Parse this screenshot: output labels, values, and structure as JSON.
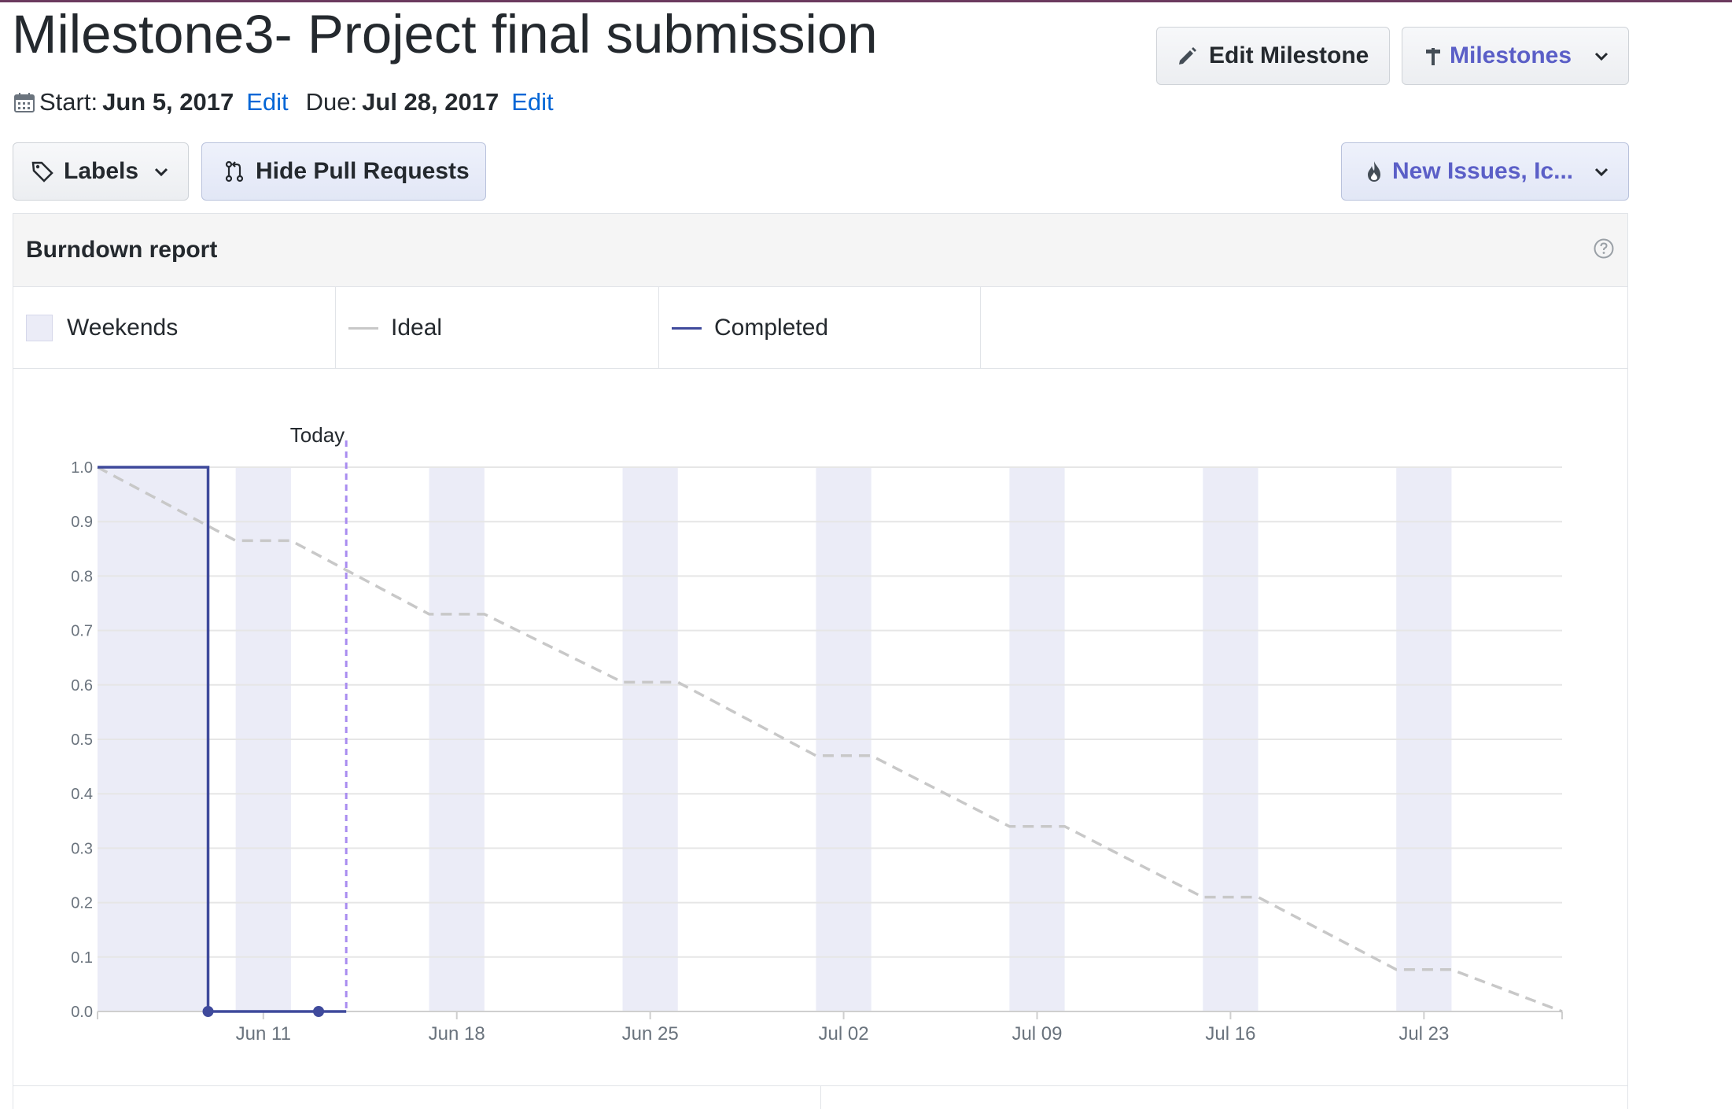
{
  "milestone": {
    "title": "Milestone3- Project final submission",
    "start_label": "Start:",
    "start_date": "Jun 5, 2017",
    "due_label": "Due:",
    "due_date": "Jul 28, 2017",
    "edit_label": "Edit"
  },
  "toolbar": {
    "edit_milestone": "Edit Milestone",
    "milestones": "Milestones",
    "labels": "Labels",
    "hide_pull_requests": "Hide Pull Requests",
    "new_issues": "New Issues, Ic..."
  },
  "report": {
    "title": "Burndown report",
    "legend": {
      "weekends": "Weekends",
      "ideal": "Ideal",
      "completed": "Completed"
    }
  },
  "colors": {
    "completed": "#3f4a9c",
    "ideal": "#c8c8c8",
    "today": "#a98cf0",
    "weekend": "#ebecf7",
    "link": "#0366d6",
    "accent": "#5b5fc7"
  },
  "chart_data": {
    "type": "line",
    "ylim": [
      0,
      1.0
    ],
    "yticks": [
      0.0,
      0.1,
      0.2,
      0.3,
      0.4,
      0.5,
      0.6,
      0.7,
      0.8,
      0.9,
      1.0
    ],
    "xlim": [
      "2017-06-05",
      "2017-07-28"
    ],
    "xticks": [
      {
        "date": "2017-06-11",
        "label": "Jun 11"
      },
      {
        "date": "2017-06-18",
        "label": "Jun 18"
      },
      {
        "date": "2017-06-25",
        "label": "Jun 25"
      },
      {
        "date": "2017-07-02",
        "label": "Jul 02"
      },
      {
        "date": "2017-07-09",
        "label": "Jul 09"
      },
      {
        "date": "2017-07-16",
        "label": "Jul 16"
      },
      {
        "date": "2017-07-23",
        "label": "Jul 23"
      }
    ],
    "today": {
      "date": "2017-06-14",
      "label": "Today"
    },
    "weekends": [
      [
        "2017-06-05",
        "2017-06-09"
      ],
      [
        "2017-06-10",
        "2017-06-12"
      ],
      [
        "2017-06-17",
        "2017-06-19"
      ],
      [
        "2017-06-24",
        "2017-06-26"
      ],
      [
        "2017-07-01",
        "2017-07-03"
      ],
      [
        "2017-07-08",
        "2017-07-10"
      ],
      [
        "2017-07-15",
        "2017-07-17"
      ],
      [
        "2017-07-22",
        "2017-07-24"
      ]
    ],
    "series": [
      {
        "name": "Ideal",
        "points": [
          [
            "2017-06-05",
            1.0
          ],
          [
            "2017-06-10",
            0.865
          ],
          [
            "2017-06-12",
            0.865
          ],
          [
            "2017-06-17",
            0.73
          ],
          [
            "2017-06-19",
            0.73
          ],
          [
            "2017-06-24",
            0.605
          ],
          [
            "2017-06-26",
            0.605
          ],
          [
            "2017-07-01",
            0.47
          ],
          [
            "2017-07-03",
            0.47
          ],
          [
            "2017-07-08",
            0.34
          ],
          [
            "2017-07-10",
            0.34
          ],
          [
            "2017-07-15",
            0.21
          ],
          [
            "2017-07-17",
            0.21
          ],
          [
            "2017-07-22",
            0.077
          ],
          [
            "2017-07-24",
            0.077
          ],
          [
            "2017-07-28",
            0.0
          ]
        ]
      },
      {
        "name": "Completed",
        "points": [
          [
            "2017-06-05",
            1.0
          ],
          [
            "2017-06-09",
            1.0
          ],
          [
            "2017-06-09",
            0.0
          ],
          [
            "2017-06-13",
            0.0
          ],
          [
            "2017-06-14",
            0.0
          ]
        ],
        "markers": [
          [
            "2017-06-09",
            0.0
          ],
          [
            "2017-06-13",
            0.0
          ]
        ]
      }
    ]
  }
}
